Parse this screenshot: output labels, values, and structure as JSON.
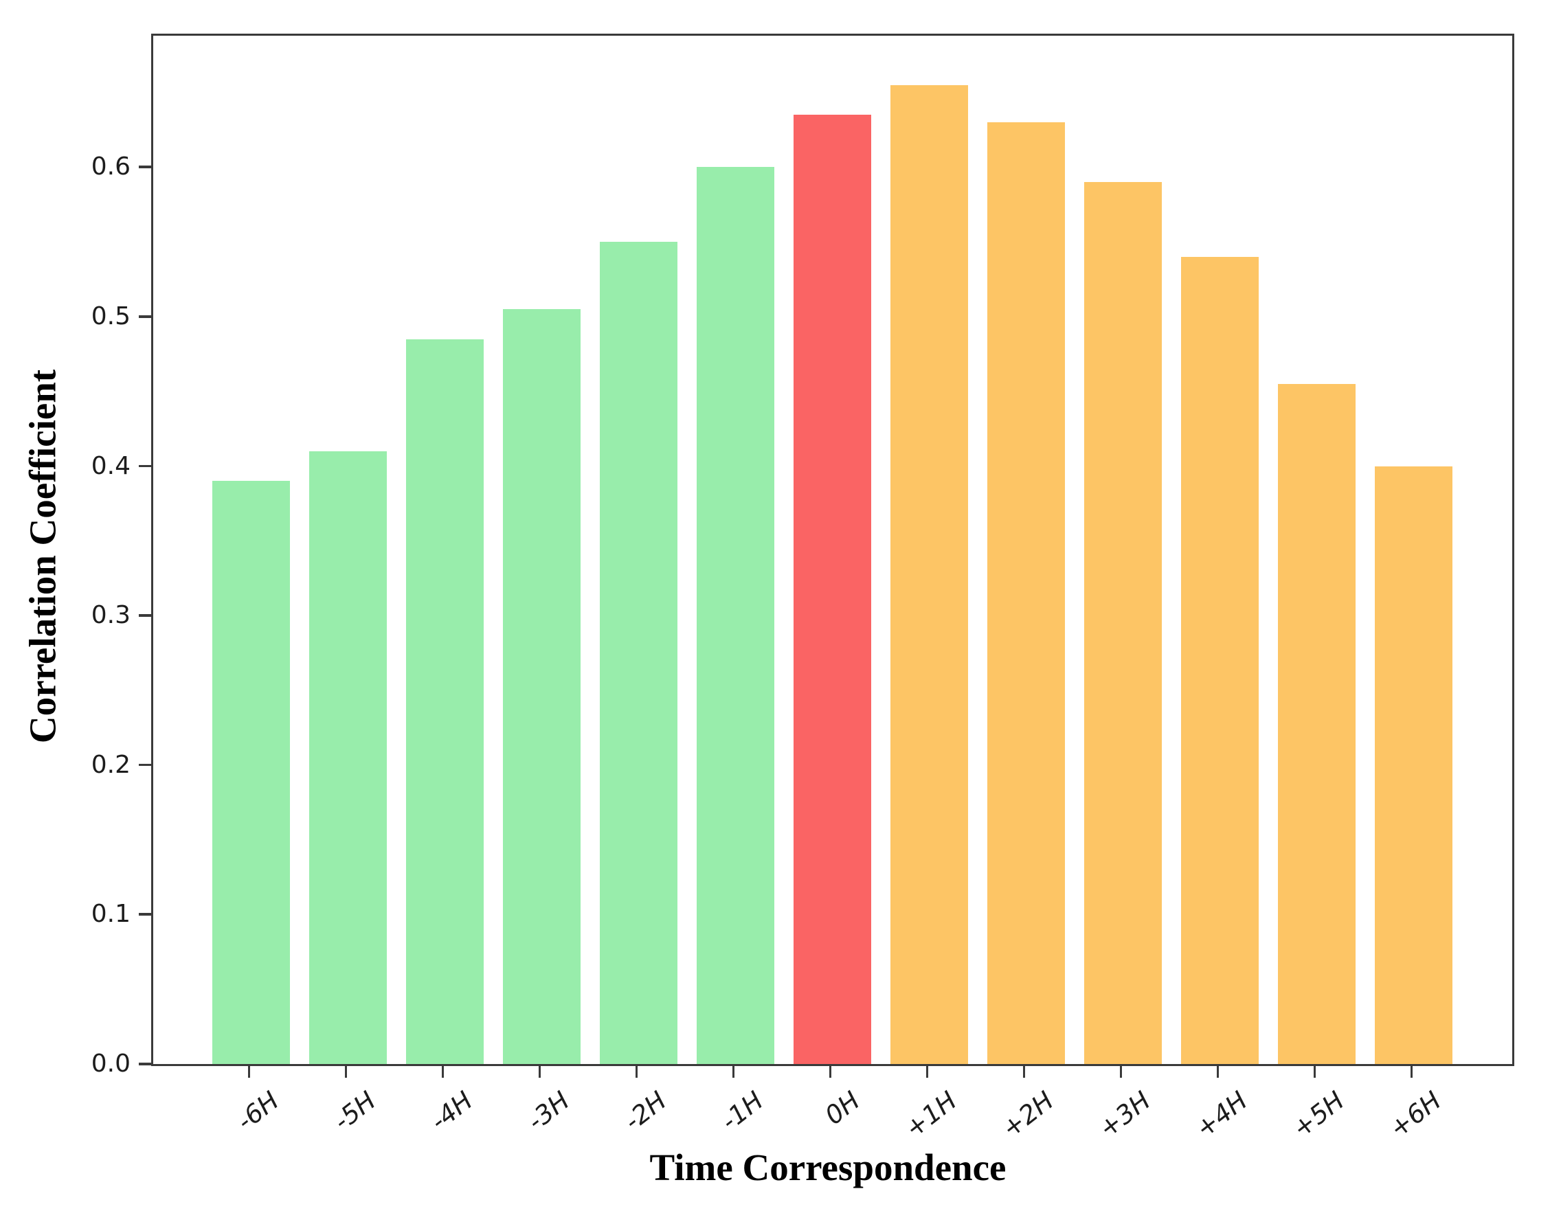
{
  "chart_data": {
    "type": "bar",
    "title": "",
    "xlabel": "Time Correspondence",
    "ylabel": "Correlation Coefficient",
    "categories": [
      "-6H",
      "-5H",
      "-4H",
      "-3H",
      "-2H",
      "-1H",
      "0H",
      "+1H",
      "+2H",
      "+3H",
      "+4H",
      "+5H",
      "+6H"
    ],
    "values": [
      0.39,
      0.41,
      0.485,
      0.505,
      0.55,
      0.6,
      0.635,
      0.655,
      0.63,
      0.59,
      0.54,
      0.455,
      0.4
    ],
    "bar_color_roles": [
      "green",
      "green",
      "green",
      "green",
      "green",
      "green",
      "red",
      "orange",
      "orange",
      "orange",
      "orange",
      "orange",
      "orange"
    ],
    "colors": {
      "green": "#98EDAB",
      "red": "#FA6464",
      "orange": "#FDC565",
      "axis": "#3a3a3a",
      "background": "#ffffff"
    },
    "yticks": [
      "0.0",
      "0.1",
      "0.2",
      "0.3",
      "0.4",
      "0.5",
      "0.6"
    ],
    "ylim": [
      0,
      0.688
    ],
    "grid": false,
    "legend": null,
    "x_tick_rotation_deg": 38
  }
}
